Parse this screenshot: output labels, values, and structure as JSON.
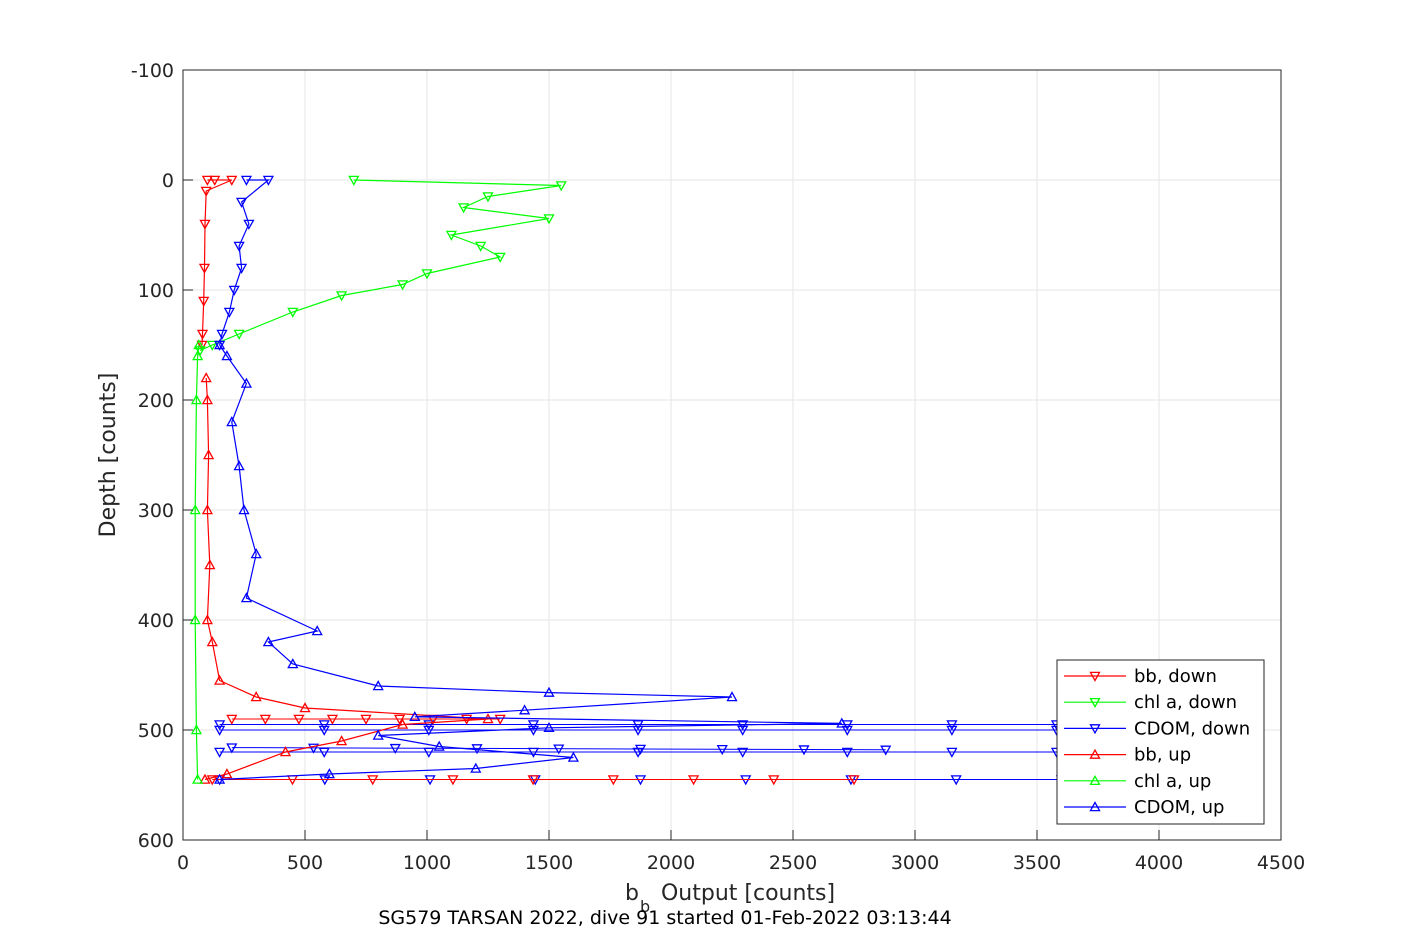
{
  "chart_data": {
    "type": "line",
    "title": "",
    "xlabel": "b",
    "xlabel_subscript": "b",
    "xlabel_rest": " Output [counts]",
    "ylabel": "Depth [counts]",
    "caption": "SG579 TARSAN 2022, dive 91 started 01-Feb-2022 03:13:44",
    "xlim": [
      0,
      4500
    ],
    "ylim": [
      -100,
      600
    ],
    "y_reversed": true,
    "grid": true,
    "legend_position": "bottom-right",
    "xticks": [
      "0",
      "500",
      "1000",
      "1500",
      "2000",
      "2500",
      "3000",
      "3500",
      "4000",
      "4500"
    ],
    "yticks": [
      "-100",
      "0",
      "100",
      "200",
      "300",
      "400",
      "500",
      "600"
    ],
    "series": [
      {
        "name": "bb, down",
        "color": "#ff0000",
        "marker": "triangle-down",
        "points": [
          [
            100,
            0
          ],
          [
            130,
            0
          ],
          [
            200,
            0
          ],
          [
            95,
            10
          ],
          [
            90,
            40
          ],
          [
            88,
            80
          ],
          [
            85,
            110
          ],
          [
            80,
            140
          ],
          [
            78,
            150
          ]
        ]
      },
      {
        "name": "chl a, down",
        "color": "#00ff00",
        "marker": "triangle-down",
        "points": [
          [
            700,
            0
          ],
          [
            1550,
            5
          ],
          [
            1250,
            15
          ],
          [
            1150,
            25
          ],
          [
            1500,
            35
          ],
          [
            1100,
            50
          ],
          [
            1220,
            60
          ],
          [
            1300,
            70
          ],
          [
            1000,
            85
          ],
          [
            900,
            95
          ],
          [
            650,
            105
          ],
          [
            450,
            120
          ],
          [
            230,
            140
          ],
          [
            120,
            150
          ],
          [
            70,
            155
          ]
        ]
      },
      {
        "name": "CDOM, down",
        "color": "#0000ff",
        "marker": "triangle-down",
        "points": [
          [
            260,
            0
          ],
          [
            350,
            0
          ],
          [
            240,
            20
          ],
          [
            270,
            40
          ],
          [
            230,
            60
          ],
          [
            240,
            80
          ],
          [
            210,
            100
          ],
          [
            190,
            120
          ],
          [
            160,
            140
          ],
          [
            150,
            150
          ]
        ]
      },
      {
        "name": "bb, up",
        "color": "#ff0000",
        "marker": "triangle-up",
        "points": [
          [
            90,
            545
          ],
          [
            180,
            540
          ],
          [
            420,
            520
          ],
          [
            650,
            510
          ],
          [
            900,
            495
          ],
          [
            1250,
            490
          ],
          [
            500,
            480
          ],
          [
            300,
            470
          ],
          [
            150,
            455
          ],
          [
            120,
            420
          ],
          [
            100,
            400
          ],
          [
            110,
            350
          ],
          [
            100,
            300
          ],
          [
            105,
            250
          ],
          [
            100,
            200
          ],
          [
            95,
            180
          ]
        ]
      },
      {
        "name": "chl a, up",
        "color": "#00ff00",
        "marker": "triangle-up",
        "points": [
          [
            60,
            545
          ],
          [
            55,
            500
          ],
          [
            50,
            400
          ],
          [
            50,
            300
          ],
          [
            55,
            200
          ],
          [
            60,
            160
          ],
          [
            65,
            150
          ]
        ]
      },
      {
        "name": "CDOM, up",
        "color": "#0000ff",
        "marker": "triangle-up",
        "points": [
          [
            150,
            545
          ],
          [
            600,
            540
          ],
          [
            1200,
            535
          ],
          [
            1600,
            525
          ],
          [
            1050,
            515
          ],
          [
            800,
            505
          ],
          [
            1500,
            498
          ],
          [
            2700,
            494
          ],
          [
            950,
            488
          ],
          [
            1400,
            482
          ],
          [
            2250,
            470
          ],
          [
            1500,
            466
          ],
          [
            800,
            460
          ],
          [
            450,
            440
          ],
          [
            350,
            420
          ],
          [
            550,
            410
          ],
          [
            260,
            380
          ],
          [
            300,
            340
          ],
          [
            250,
            300
          ],
          [
            230,
            260
          ],
          [
            200,
            220
          ],
          [
            260,
            185
          ],
          [
            180,
            160
          ],
          [
            150,
            150
          ]
        ]
      }
    ],
    "extra_segments": {
      "blue_long": [
        [
          [
            150,
            495
          ],
          [
            3580,
            495
          ]
        ],
        [
          [
            150,
            500
          ],
          [
            3580,
            500
          ]
        ],
        [
          [
            150,
            520
          ],
          [
            3580,
            520
          ]
        ],
        [
          [
            200,
            516
          ],
          [
            2880,
            518
          ]
        ],
        [
          [
            150,
            545
          ],
          [
            3600,
            545
          ]
        ]
      ],
      "red_long": [
        [
          [
            120,
            545
          ],
          [
            2750,
            545
          ]
        ],
        [
          [
            200,
            490
          ],
          [
            1300,
            490
          ]
        ]
      ]
    }
  }
}
